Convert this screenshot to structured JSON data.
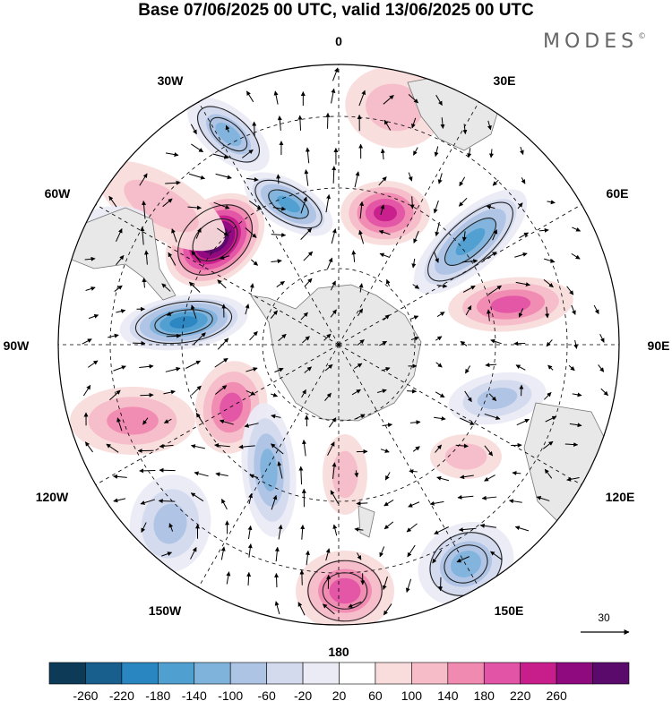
{
  "title": "Base 07/06/2025 00 UTC, valid 13/06/2025 00 UTC",
  "brand": {
    "name": "MODES",
    "mark": "©"
  },
  "map": {
    "projection": "south polar stereographic",
    "longitude_labels": {
      "top": "0",
      "top_right": "30E",
      "right_upper": "60E",
      "right": "90E",
      "right_lower": "120E",
      "bottom_right": "150E",
      "bottom": "180",
      "bottom_left": "150W",
      "left_lower": "120W",
      "left": "90W",
      "left_upper": "60W",
      "top_left": "30W"
    },
    "vector_reference": {
      "value": "30"
    },
    "colors": {
      "land": "#e8e8e8",
      "coast": "#777777",
      "grid": "#000000",
      "contour": "#222222",
      "arrow": "#000000"
    }
  },
  "colorbar": {
    "colors": [
      "#0d3b57",
      "#185f8e",
      "#2a86c1",
      "#4f9fd0",
      "#7fb3dc",
      "#aec4e4",
      "#d3daee",
      "#ebebf5",
      "#ffffff",
      "#f9dcdc",
      "#f6bcc8",
      "#f08ab0",
      "#e254a5",
      "#c71e8c",
      "#8e0a7e",
      "#5a0a6b"
    ],
    "tick_labels": [
      "-260",
      "-220",
      "-180",
      "-140",
      "-100",
      "-60",
      "-20",
      "20",
      "60",
      "100",
      "140",
      "180",
      "220",
      "260"
    ]
  }
}
